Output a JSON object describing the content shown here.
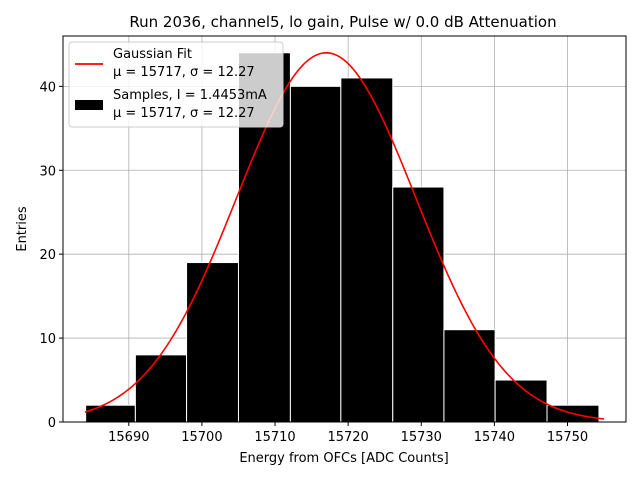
{
  "chart_data": {
    "type": "bar",
    "title": "Run 2036, channel5, lo gain, Pulse w/ 0.0 dB Attenuation",
    "xlabel": "Energy from OFCs [ADC Counts]",
    "ylabel": "Entries",
    "xlim": [
      15681,
      15758
    ],
    "ylim": [
      0,
      46
    ],
    "xticks": [
      15690,
      15700,
      15710,
      15720,
      15730,
      15740,
      15750
    ],
    "yticks": [
      0,
      10,
      20,
      30,
      40
    ],
    "grid": true,
    "legend_position": "top-left",
    "bins": [
      {
        "x0": 15684.1,
        "x1": 15690.9,
        "value": 2
      },
      {
        "x0": 15690.9,
        "x1": 15697.9,
        "value": 8
      },
      {
        "x0": 15697.9,
        "x1": 15705.0,
        "value": 19
      },
      {
        "x0": 15705.0,
        "x1": 15712.1,
        "value": 44
      },
      {
        "x0": 15712.1,
        "x1": 15719.0,
        "value": 40
      },
      {
        "x0": 15719.0,
        "x1": 15726.1,
        "value": 41
      },
      {
        "x0": 15726.1,
        "x1": 15733.1,
        "value": 28
      },
      {
        "x0": 15733.1,
        "x1": 15740.1,
        "value": 11
      },
      {
        "x0": 15740.1,
        "x1": 15747.2,
        "value": 5
      },
      {
        "x0": 15747.2,
        "x1": 15754.3,
        "value": 2
      }
    ],
    "fit": {
      "mu": 15717,
      "sigma": 12.27,
      "amplitude": 44,
      "x_range": [
        15684,
        15755
      ]
    },
    "colors": {
      "bars": "#000000",
      "bar_edge": "#ffffff",
      "fit": "#ff0000",
      "grid": "#b0b0b0"
    },
    "legend": [
      {
        "label_line1": "Gaussian Fit",
        "label_line2": "μ = 15717, σ = 12.27",
        "kind": "line"
      },
      {
        "label_line1": "Samples, I = 1.4453mA",
        "label_line2": "μ = 15717, σ = 12.27",
        "kind": "patch"
      }
    ]
  }
}
